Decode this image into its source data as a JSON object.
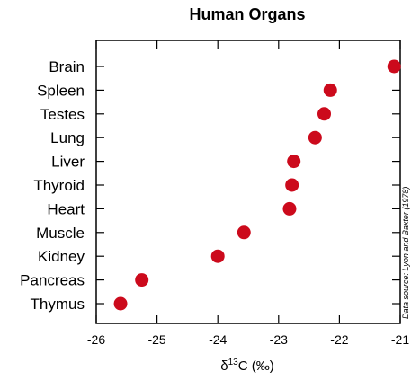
{
  "chart_data": {
    "type": "scatter",
    "title": "Human Organs",
    "categories": [
      "Brain",
      "Spleen",
      "Testes",
      "Lung",
      "Liver",
      "Thyroid",
      "Heart",
      "Muscle",
      "Kidney",
      "Pancreas",
      "Thymus"
    ],
    "values": [
      -21.1,
      -22.15,
      -22.25,
      -22.4,
      -22.75,
      -22.78,
      -22.82,
      -23.57,
      -24.0,
      -25.25,
      -25.6
    ],
    "xlabel_prefix": "δ",
    "xlabel_sup": "13",
    "xlabel_suffix": "C (‰)",
    "xlim": [
      -26,
      -21
    ],
    "xticks": [
      -26,
      -25,
      -24,
      -23,
      -22,
      -21
    ],
    "source": "Data source:  Lyon and Baxter (1978)",
    "grid": false,
    "marker_color": "#cc0a1c"
  }
}
